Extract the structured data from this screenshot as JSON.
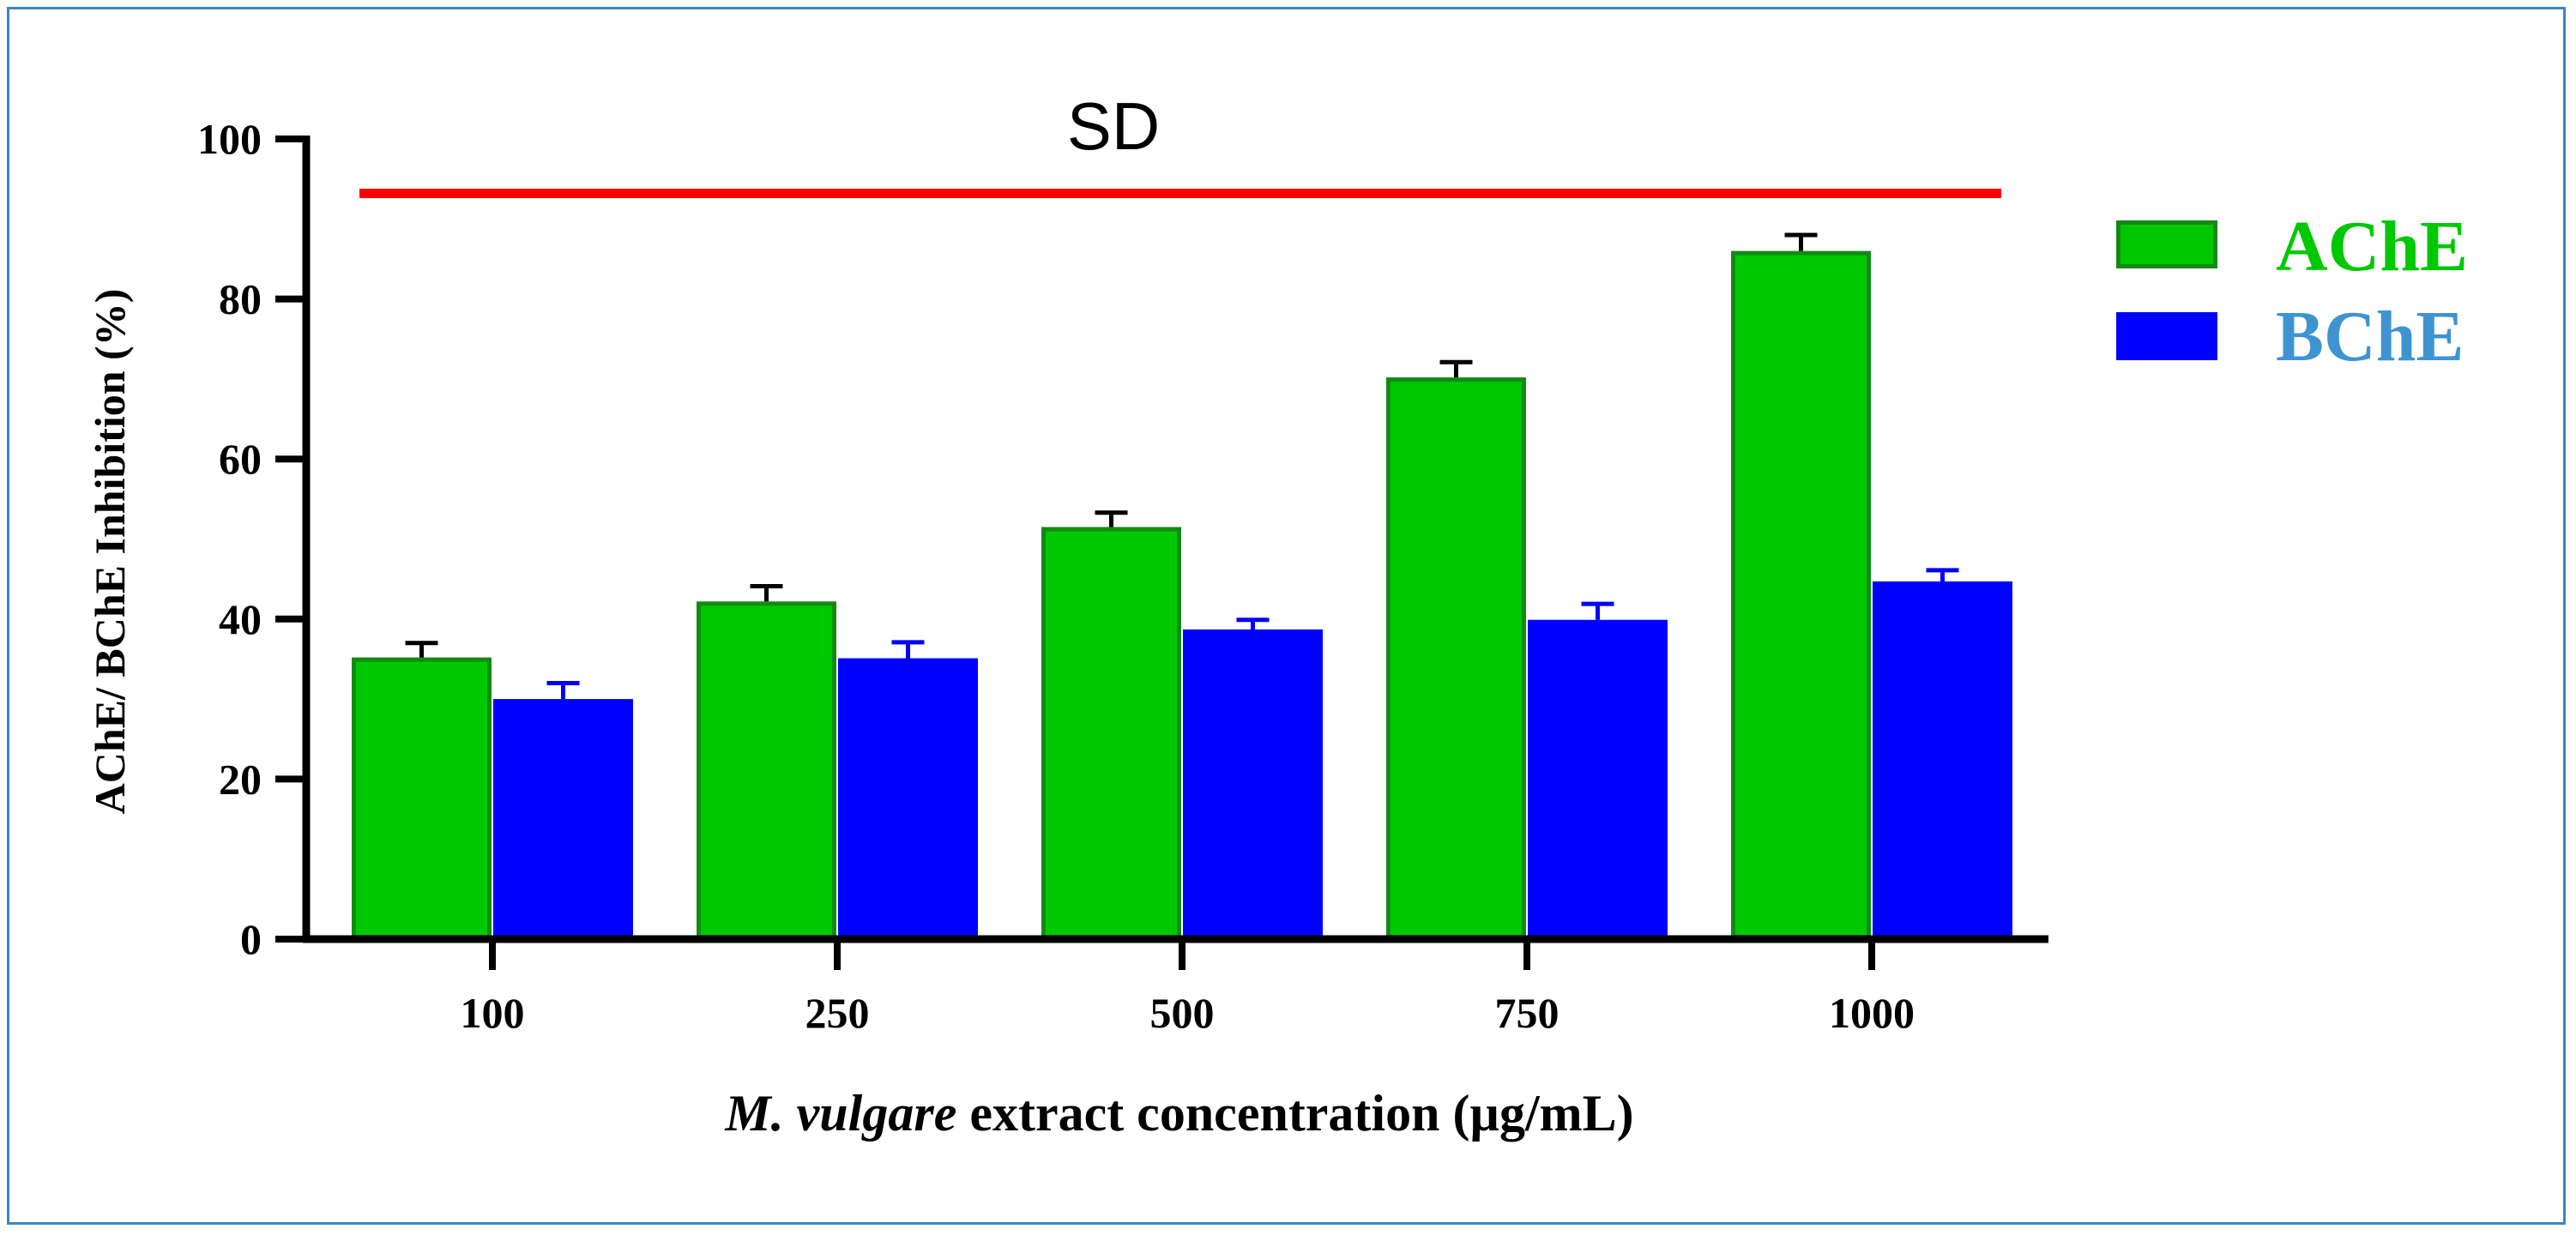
{
  "chart_data": {
    "type": "bar",
    "title": "",
    "categories": [
      "100",
      "250",
      "500",
      "750",
      "1000"
    ],
    "series": [
      {
        "name": "AChE",
        "values": [
          35.2,
          42.2,
          51.5,
          70.2,
          86.0
        ],
        "errors": [
          1.8,
          1.9,
          1.8,
          1.9,
          2.0
        ],
        "fill": "#00c800",
        "stroke": "#138a13",
        "error_color": "#000000",
        "legend_text_color": "#00c800"
      },
      {
        "name": "BChE",
        "values": [
          30.0,
          35.1,
          38.7,
          39.9,
          44.7
        ],
        "errors": [
          2.0,
          2.0,
          1.2,
          2.0,
          1.4
        ],
        "fill": "#0000ff",
        "stroke": "#0000ff",
        "error_color": "#0000ff",
        "legend_text_color": "#3e94d1"
      }
    ],
    "ylabel": "AChE/ BChE Inhibition (%)",
    "xlabel_italic": "M. vulgare",
    "xlabel_rest": " extract concentration (µg/mL)",
    "ylim": [
      0,
      100
    ],
    "yticks": [
      0,
      20,
      40,
      60,
      80,
      100
    ],
    "grid": false,
    "legend_position": "right",
    "annotation": {
      "text": "SD",
      "line_value": 93.2,
      "line_color": "#ff0000"
    },
    "axis_color": "#000000"
  }
}
